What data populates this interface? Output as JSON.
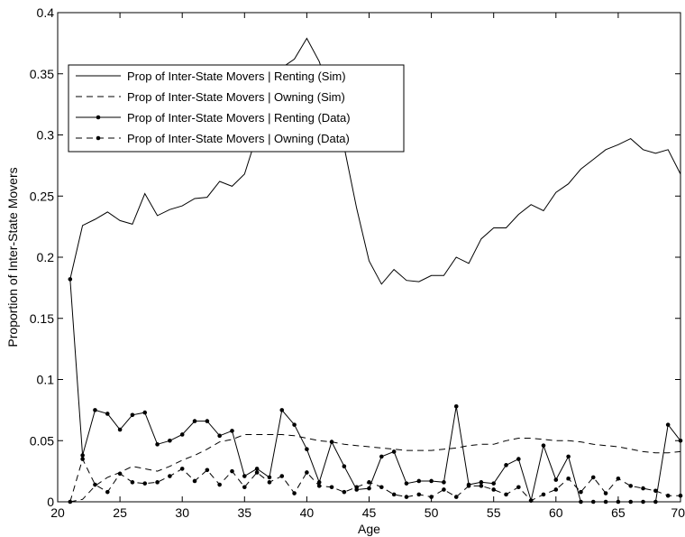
{
  "chart_data": {
    "type": "line",
    "xlabel": "Age",
    "ylabel": "Proportion of Inter-State Movers",
    "xlim": [
      20,
      70
    ],
    "ylim": [
      0,
      0.4
    ],
    "xticks": [
      "20",
      "25",
      "30",
      "35",
      "40",
      "45",
      "50",
      "55",
      "60",
      "65",
      "70"
    ],
    "yticks": [
      "0",
      "0.05",
      "0.1",
      "0.15",
      "0.2",
      "0.25",
      "0.3",
      "0.35",
      "0.4"
    ],
    "grid": false,
    "legend_position": "top-left",
    "series": [
      {
        "name": "Prop of Inter-State Movers | Renting (Sim)",
        "style": "solid",
        "marker": "none",
        "x": [
          21,
          22,
          23,
          24,
          25,
          26,
          27,
          28,
          29,
          30,
          31,
          32,
          33,
          34,
          35,
          36,
          37,
          38,
          39,
          40,
          41,
          42,
          43,
          44,
          45,
          46,
          47,
          48,
          49,
          50,
          51,
          52,
          53,
          54,
          55,
          56,
          57,
          58,
          59,
          60,
          61,
          62,
          63,
          64,
          65,
          66,
          67,
          68,
          69,
          70
        ],
        "y": [
          0.182,
          0.226,
          0.231,
          0.237,
          0.23,
          0.227,
          0.252,
          0.234,
          0.239,
          0.242,
          0.248,
          0.249,
          0.262,
          0.258,
          0.268,
          0.3,
          0.33,
          0.355,
          0.362,
          0.379,
          0.36,
          0.33,
          0.29,
          0.24,
          0.197,
          0.178,
          0.19,
          0.181,
          0.18,
          0.185,
          0.185,
          0.2,
          0.195,
          0.215,
          0.224,
          0.224,
          0.235,
          0.243,
          0.238,
          0.253,
          0.26,
          0.272,
          0.28,
          0.288,
          0.292,
          0.297,
          0.288,
          0.285,
          0.288,
          0.268
        ]
      },
      {
        "name": "Prop of Inter-State Movers | Owning (Sim)",
        "style": "dashed",
        "marker": "none",
        "x": [
          21,
          22,
          23,
          24,
          25,
          26,
          27,
          28,
          29,
          30,
          31,
          32,
          33,
          34,
          35,
          36,
          37,
          38,
          39,
          40,
          41,
          42,
          43,
          44,
          45,
          46,
          47,
          48,
          49,
          50,
          51,
          52,
          53,
          54,
          55,
          56,
          57,
          58,
          59,
          60,
          61,
          62,
          63,
          64,
          65,
          66,
          67,
          68,
          69,
          70
        ],
        "y": [
          0.0,
          0.002,
          0.013,
          0.02,
          0.024,
          0.029,
          0.027,
          0.025,
          0.029,
          0.034,
          0.038,
          0.043,
          0.049,
          0.051,
          0.055,
          0.055,
          0.055,
          0.055,
          0.054,
          0.052,
          0.05,
          0.049,
          0.047,
          0.046,
          0.045,
          0.044,
          0.043,
          0.042,
          0.042,
          0.042,
          0.043,
          0.044,
          0.046,
          0.047,
          0.047,
          0.05,
          0.052,
          0.052,
          0.051,
          0.05,
          0.05,
          0.049,
          0.047,
          0.046,
          0.045,
          0.043,
          0.041,
          0.04,
          0.04,
          0.041
        ]
      },
      {
        "name": "Prop of Inter-State Movers | Renting (Data)",
        "style": "solid",
        "marker": "dot",
        "x": [
          21,
          22,
          23,
          24,
          25,
          26,
          27,
          28,
          29,
          30,
          31,
          32,
          33,
          34,
          35,
          36,
          37,
          38,
          39,
          40,
          41,
          42,
          43,
          44,
          45,
          46,
          47,
          48,
          49,
          50,
          51,
          52,
          53,
          54,
          55,
          56,
          57,
          58,
          59,
          60,
          61,
          62,
          63,
          64,
          65,
          66,
          67,
          68,
          69,
          70
        ],
        "y": [
          0.182,
          0.038,
          0.075,
          0.072,
          0.059,
          0.071,
          0.073,
          0.047,
          0.05,
          0.055,
          0.066,
          0.066,
          0.054,
          0.058,
          0.021,
          0.027,
          0.02,
          0.075,
          0.063,
          0.043,
          0.016,
          0.049,
          0.029,
          0.01,
          0.011,
          0.037,
          0.041,
          0.015,
          0.017,
          0.017,
          0.016,
          0.078,
          0.014,
          0.016,
          0.015,
          0.03,
          0.035,
          0.001,
          0.046,
          0.018,
          0.037,
          0.0,
          0.0,
          0.0,
          0.0,
          0.0,
          0.0,
          0.0,
          0.063,
          0.05
        ]
      },
      {
        "name": "Prop of Inter-State Movers | Owning (Data)",
        "style": "dashed",
        "marker": "dot",
        "x": [
          21,
          22,
          23,
          24,
          25,
          26,
          27,
          28,
          29,
          30,
          31,
          32,
          33,
          34,
          35,
          36,
          37,
          38,
          39,
          40,
          41,
          42,
          43,
          44,
          45,
          46,
          47,
          48,
          49,
          50,
          51,
          52,
          53,
          54,
          55,
          56,
          57,
          58,
          59,
          60,
          61,
          62,
          63,
          64,
          65,
          66,
          67,
          68,
          69,
          70
        ],
        "y": [
          0.0,
          0.035,
          0.014,
          0.008,
          0.023,
          0.016,
          0.015,
          0.016,
          0.021,
          0.027,
          0.017,
          0.026,
          0.014,
          0.025,
          0.012,
          0.024,
          0.016,
          0.021,
          0.007,
          0.024,
          0.013,
          0.012,
          0.008,
          0.012,
          0.016,
          0.012,
          0.006,
          0.004,
          0.006,
          0.004,
          0.01,
          0.004,
          0.013,
          0.013,
          0.01,
          0.006,
          0.012,
          0.001,
          0.006,
          0.01,
          0.019,
          0.008,
          0.02,
          0.007,
          0.019,
          0.013,
          0.011,
          0.009,
          0.005,
          0.005
        ]
      }
    ]
  }
}
